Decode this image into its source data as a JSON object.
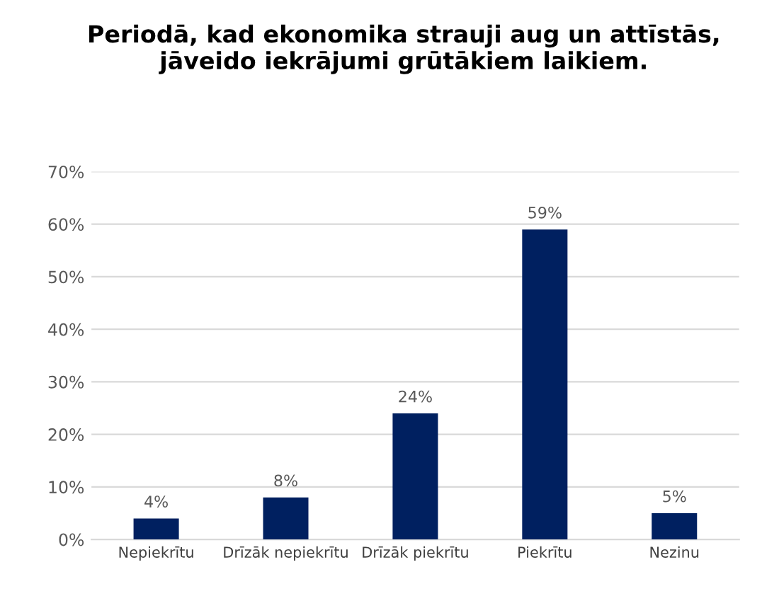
{
  "chart_data": {
    "type": "bar",
    "title": "Periodā, kad ekonomika strauji aug un attīstās, jāveido iekrājumi grūtākiem laikiem.",
    "categories": [
      "Nepiekrītu",
      "Drīzāk nepiekrītu",
      "Drīzāk piekrītu",
      "Piekrītu",
      "Nezinu"
    ],
    "values": [
      4,
      8,
      24,
      59,
      5
    ],
    "value_labels": [
      "4%",
      "8%",
      "24%",
      "59%",
      "5%"
    ],
    "color": "#002060",
    "ylim": [
      0,
      70
    ],
    "yticks": [
      {
        "value": 0,
        "label": "0%"
      },
      {
        "value": 10,
        "label": "10%"
      },
      {
        "value": 20,
        "label": "20%"
      },
      {
        "value": 30,
        "label": "30%"
      },
      {
        "value": 40,
        "label": "40%"
      },
      {
        "value": 50,
        "label": "50%"
      },
      {
        "value": 60,
        "label": "60%"
      },
      {
        "value": 70,
        "label": "70%"
      }
    ],
    "grid": "y",
    "legend": false
  }
}
